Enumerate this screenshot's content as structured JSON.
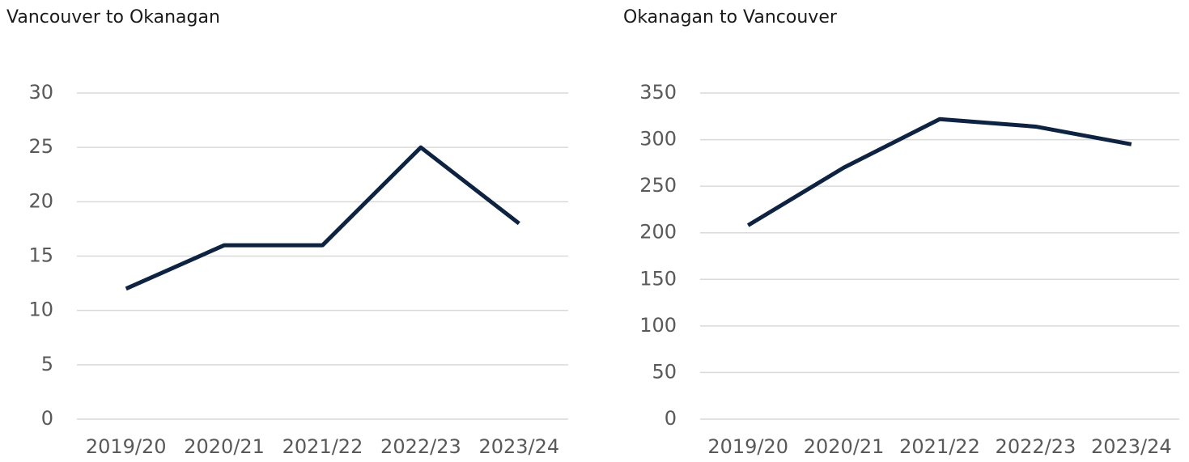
{
  "chart_data": [
    {
      "type": "line",
      "title": "Vancouver to Okanagan",
      "categories": [
        "2019/20",
        "2020/21",
        "2021/22",
        "2022/23",
        "2023/24"
      ],
      "series": [
        {
          "color": "#0e2341",
          "values": [
            12,
            16,
            16,
            25,
            18
          ]
        }
      ],
      "ylim": [
        0,
        30
      ],
      "yticks": [
        0,
        5,
        10,
        15,
        20,
        25,
        30
      ],
      "grid": true
    },
    {
      "type": "line",
      "title": "Okanagan to Vancouver",
      "categories": [
        "2019/20",
        "2020/21",
        "2021/22",
        "2022/23",
        "2023/24"
      ],
      "series": [
        {
          "color": "#0e2341",
          "values": [
            208,
            270,
            322,
            314,
            295
          ]
        }
      ],
      "ylim": [
        0,
        350
      ],
      "yticks": [
        0,
        50,
        100,
        150,
        200,
        250,
        300,
        350
      ],
      "grid": true
    }
  ]
}
